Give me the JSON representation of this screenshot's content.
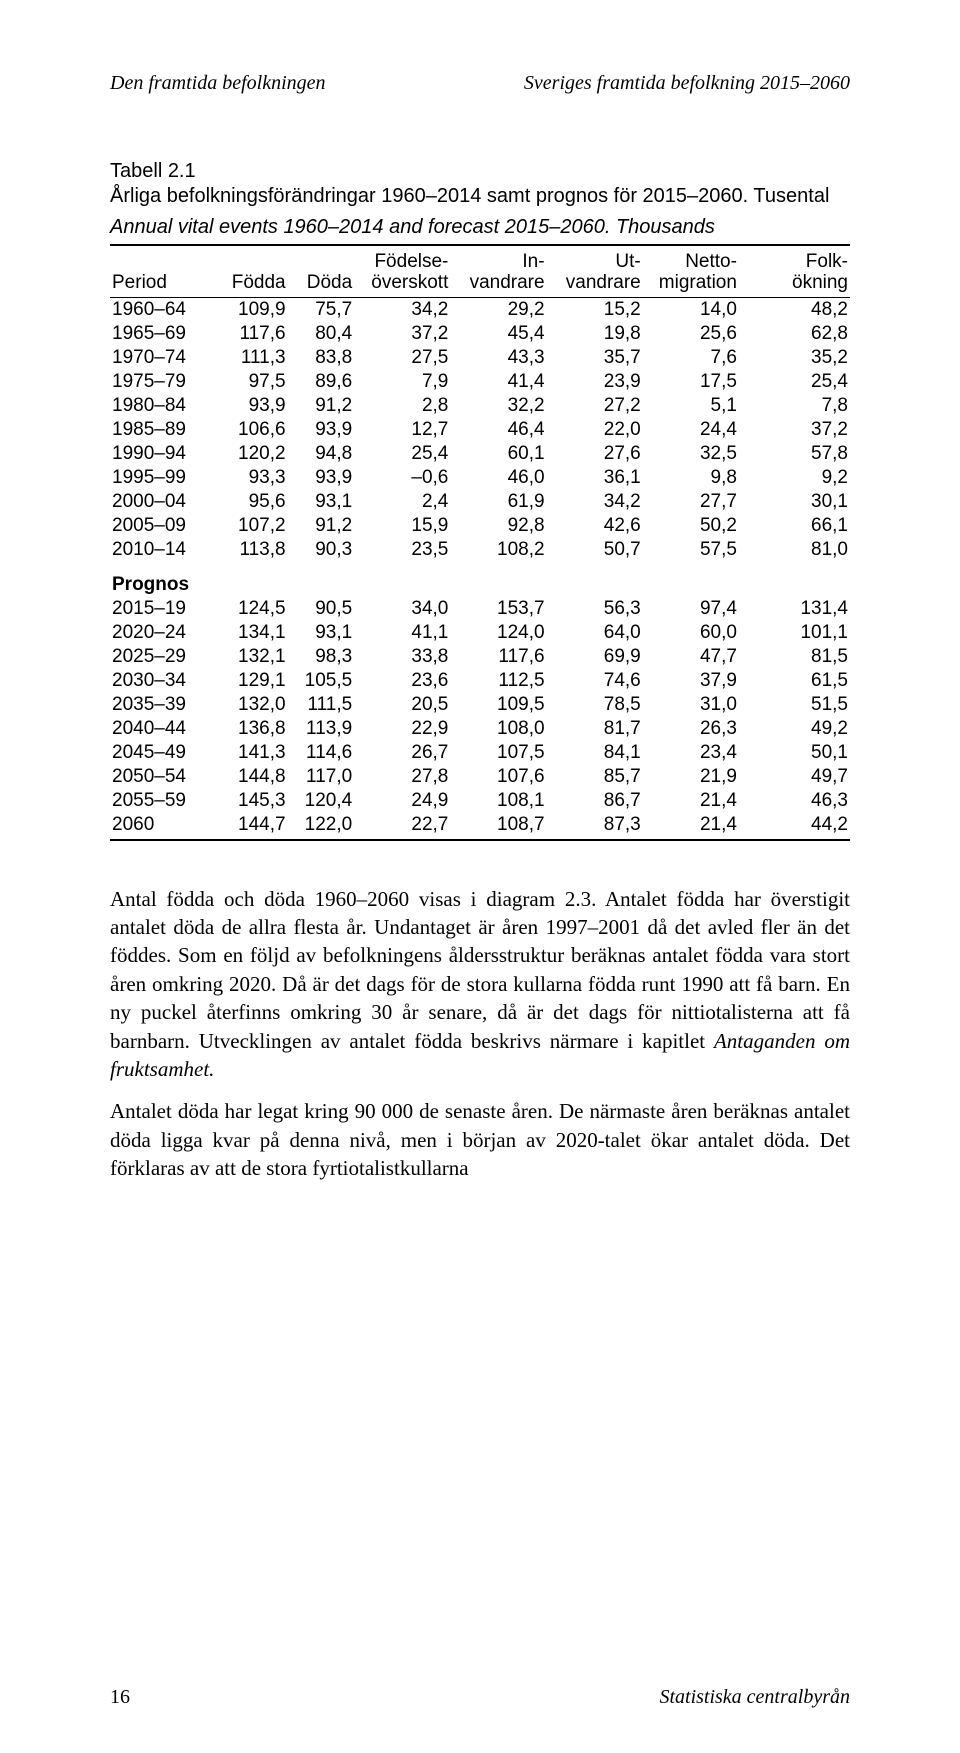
{
  "running_head": {
    "left": "Den framtida befolkningen",
    "right": "Sveriges framtida befolkning 2015–2060"
  },
  "table": {
    "caption_strong": "Tabell 2.1",
    "caption_rest": "Årliga befolkningsförändringar 1960–2014 samt prognos för 2015–2060. Tusental",
    "caption_en": "Annual vital events 1960–2014 and forecast 2015–2060. Thousands",
    "columns": [
      {
        "l1": "",
        "l2": "Period",
        "align": "left",
        "w": "14%"
      },
      {
        "l1": "",
        "l2": "Födda",
        "w": "10%"
      },
      {
        "l1": "",
        "l2": "Döda",
        "w": "9%"
      },
      {
        "l1": "Födelse-",
        "l2": "överskott",
        "w": "13%"
      },
      {
        "l1": "In-",
        "l2": "vandrare",
        "w": "13%"
      },
      {
        "l1": "Ut-",
        "l2": "vandrare",
        "w": "13%"
      },
      {
        "l1": "Netto-",
        "l2": "migration",
        "w": "13%"
      },
      {
        "l1": "Folk-",
        "l2": "ökning",
        "w": "15%"
      }
    ],
    "rows": [
      [
        "1960–64",
        "109,9",
        "75,7",
        "34,2",
        "29,2",
        "15,2",
        "14,0",
        "48,2"
      ],
      [
        "1965–69",
        "117,6",
        "80,4",
        "37,2",
        "45,4",
        "19,8",
        "25,6",
        "62,8"
      ],
      [
        "1970–74",
        "111,3",
        "83,8",
        "27,5",
        "43,3",
        "35,7",
        "7,6",
        "35,2"
      ],
      [
        "1975–79",
        "97,5",
        "89,6",
        "7,9",
        "41,4",
        "23,9",
        "17,5",
        "25,4"
      ],
      [
        "1980–84",
        "93,9",
        "91,2",
        "2,8",
        "32,2",
        "27,2",
        "5,1",
        "7,8"
      ],
      [
        "1985–89",
        "106,6",
        "93,9",
        "12,7",
        "46,4",
        "22,0",
        "24,4",
        "37,2"
      ],
      [
        "1990–94",
        "120,2",
        "94,8",
        "25,4",
        "60,1",
        "27,6",
        "32,5",
        "57,8"
      ],
      [
        "1995–99",
        "93,3",
        "93,9",
        "–0,6",
        "46,0",
        "36,1",
        "9,8",
        "9,2"
      ],
      [
        "2000–04",
        "95,6",
        "93,1",
        "2,4",
        "61,9",
        "34,2",
        "27,7",
        "30,1"
      ],
      [
        "2005–09",
        "107,2",
        "91,2",
        "15,9",
        "92,8",
        "42,6",
        "50,2",
        "66,1"
      ],
      [
        "2010–14",
        "113,8",
        "90,3",
        "23,5",
        "108,2",
        "50,7",
        "57,5",
        "81,0"
      ]
    ],
    "section_label": "Prognos",
    "rows2": [
      [
        "2015–19",
        "124,5",
        "90,5",
        "34,0",
        "153,7",
        "56,3",
        "97,4",
        "131,4"
      ],
      [
        "2020–24",
        "134,1",
        "93,1",
        "41,1",
        "124,0",
        "64,0",
        "60,0",
        "101,1"
      ],
      [
        "2025–29",
        "132,1",
        "98,3",
        "33,8",
        "117,6",
        "69,9",
        "47,7",
        "81,5"
      ],
      [
        "2030–34",
        "129,1",
        "105,5",
        "23,6",
        "112,5",
        "74,6",
        "37,9",
        "61,5"
      ],
      [
        "2035–39",
        "132,0",
        "111,5",
        "20,5",
        "109,5",
        "78,5",
        "31,0",
        "51,5"
      ],
      [
        "2040–44",
        "136,8",
        "113,9",
        "22,9",
        "108,0",
        "81,7",
        "26,3",
        "49,2"
      ],
      [
        "2045–49",
        "141,3",
        "114,6",
        "26,7",
        "107,5",
        "84,1",
        "23,4",
        "50,1"
      ],
      [
        "2050–54",
        "144,8",
        "117,0",
        "27,8",
        "107,6",
        "85,7",
        "21,9",
        "49,7"
      ],
      [
        "2055–59",
        "145,3",
        "120,4",
        "24,9",
        "108,1",
        "86,7",
        "21,4",
        "46,3"
      ],
      [
        "2060",
        "144,7",
        "122,0",
        "22,7",
        "108,7",
        "87,3",
        "21,4",
        "44,2"
      ]
    ]
  },
  "body": {
    "p1a": "Antal födda och döda 1960–2060 visas i diagram 2.3. Antalet födda har överstigit antalet döda de allra flesta år. Undantaget är åren 1997–2001 då det avled fler än det föddes. Som en följd av befolkningens åldersstruktur beräknas antalet födda vara stort åren omkring 2020. Då är det dags för de stora kullarna födda runt 1990 att få barn. En ny puckel återfinns omkring 30 år senare, då är det dags för nittiotalisterna att få barnbarn. Utvecklingen av antalet födda beskrivs närmare i kapitlet ",
    "p1i": "Antaganden om fruktsamhet.",
    "p2": "Antalet döda har legat kring 90 000 de senaste åren. De närmaste åren beräknas antalet döda ligga kvar på denna nivå, men i början av 2020-talet ökar antalet döda. Det förklaras av att de stora fyrtiotalistkullarna"
  },
  "footer": {
    "page": "16",
    "publisher": "Statistiska centralbyrån"
  }
}
